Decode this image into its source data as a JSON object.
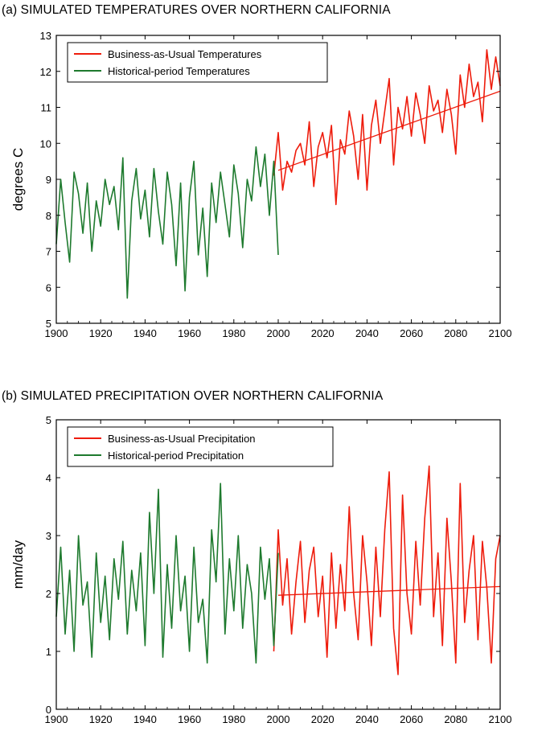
{
  "colors": {
    "business_as_usual": "#ee1c0c",
    "historical": "#1e7a2e",
    "trend": "#ee1c0c"
  },
  "chart_data": [
    {
      "type": "line",
      "title": "(a) SIMULATED TEMPERATURES OVER NORTHERN CALIFORNIA",
      "xlabel": "",
      "ylabel": "degrees C",
      "xlim": [
        1900,
        2100
      ],
      "ylim": [
        5,
        13
      ],
      "xticks": [
        1900,
        1920,
        1940,
        1960,
        1980,
        2000,
        2020,
        2040,
        2060,
        2080,
        2100
      ],
      "yticks": [
        5,
        6,
        7,
        8,
        9,
        10,
        11,
        12,
        13
      ],
      "grid": false,
      "legend_position": "top-left",
      "series": [
        {
          "name": "Business-as-Usual Temperatures",
          "color": "#ee1c0c",
          "x": [
            1998,
            2000,
            2002,
            2004,
            2006,
            2008,
            2010,
            2012,
            2014,
            2016,
            2018,
            2020,
            2022,
            2024,
            2026,
            2028,
            2030,
            2032,
            2034,
            2036,
            2038,
            2040,
            2042,
            2044,
            2046,
            2048,
            2050,
            2052,
            2054,
            2056,
            2058,
            2060,
            2062,
            2064,
            2066,
            2068,
            2070,
            2072,
            2074,
            2076,
            2078,
            2080,
            2082,
            2084,
            2086,
            2088,
            2090,
            2092,
            2094,
            2096,
            2098,
            2100
          ],
          "y": [
            9.1,
            10.3,
            8.7,
            9.5,
            9.2,
            9.8,
            10.0,
            9.4,
            10.6,
            8.8,
            9.9,
            10.3,
            9.6,
            10.5,
            8.3,
            10.1,
            9.7,
            10.9,
            10.2,
            9.0,
            10.8,
            8.7,
            10.5,
            11.2,
            10.0,
            10.9,
            11.8,
            9.4,
            11.0,
            10.4,
            11.3,
            10.2,
            11.4,
            10.8,
            10.0,
            11.6,
            10.9,
            11.2,
            10.3,
            11.5,
            10.8,
            9.7,
            11.9,
            11.0,
            12.2,
            11.3,
            11.7,
            10.6,
            12.6,
            11.5,
            12.4,
            11.6
          ]
        },
        {
          "name": "Historical-period Temperatures",
          "color": "#1e7a2e",
          "x": [
            1900,
            1902,
            1904,
            1906,
            1908,
            1910,
            1912,
            1914,
            1916,
            1918,
            1920,
            1922,
            1924,
            1926,
            1928,
            1930,
            1932,
            1934,
            1936,
            1938,
            1940,
            1942,
            1944,
            1946,
            1948,
            1950,
            1952,
            1954,
            1956,
            1958,
            1960,
            1962,
            1964,
            1966,
            1968,
            1970,
            1972,
            1974,
            1976,
            1978,
            1980,
            1982,
            1984,
            1986,
            1988,
            1990,
            1992,
            1994,
            1996,
            1998,
            2000
          ],
          "y": [
            7.2,
            9.0,
            7.8,
            6.7,
            9.2,
            8.6,
            7.5,
            8.9,
            7.0,
            8.4,
            7.7,
            9.0,
            8.3,
            8.8,
            7.6,
            9.6,
            5.7,
            8.4,
            9.3,
            7.9,
            8.7,
            7.4,
            9.3,
            8.1,
            7.2,
            9.2,
            8.3,
            6.6,
            8.9,
            5.9,
            8.5,
            9.5,
            6.9,
            8.2,
            6.3,
            8.9,
            7.8,
            9.2,
            8.3,
            7.4,
            9.4,
            8.6,
            7.1,
            9.0,
            8.4,
            9.9,
            8.8,
            9.7,
            8.0,
            9.5,
            6.9
          ]
        },
        {
          "name": "",
          "color": "#ee1c0c",
          "x": [
            2000,
            2100
          ],
          "y": [
            9.25,
            11.45
          ]
        }
      ]
    },
    {
      "type": "line",
      "title": "(b) SIMULATED PRECIPITATION OVER NORTHERN CALIFORNIA",
      "xlabel": "",
      "ylabel": "mm/day",
      "xlim": [
        1900,
        2100
      ],
      "ylim": [
        0,
        5
      ],
      "xticks": [
        1900,
        1920,
        1940,
        1960,
        1980,
        2000,
        2020,
        2040,
        2060,
        2080,
        2100
      ],
      "yticks": [
        0,
        1,
        2,
        3,
        4,
        5
      ],
      "grid": false,
      "legend_position": "top-left",
      "series": [
        {
          "name": "Business-as-Usual Precipitation",
          "color": "#ee1c0c",
          "x": [
            1998,
            2000,
            2002,
            2004,
            2006,
            2008,
            2010,
            2012,
            2014,
            2016,
            2018,
            2020,
            2022,
            2024,
            2026,
            2028,
            2030,
            2032,
            2034,
            2036,
            2038,
            2040,
            2042,
            2044,
            2046,
            2048,
            2050,
            2052,
            2054,
            2056,
            2058,
            2060,
            2062,
            2064,
            2066,
            2068,
            2070,
            2072,
            2074,
            2076,
            2078,
            2080,
            2082,
            2084,
            2086,
            2088,
            2090,
            2092,
            2094,
            2096,
            2098,
            2100
          ],
          "y": [
            1.0,
            3.1,
            1.8,
            2.6,
            1.3,
            2.2,
            2.9,
            1.5,
            2.4,
            2.8,
            1.6,
            2.3,
            0.9,
            2.7,
            1.4,
            2.5,
            1.7,
            3.5,
            2.0,
            1.2,
            3.0,
            2.2,
            1.1,
            2.8,
            1.6,
            3.1,
            4.1,
            1.4,
            0.6,
            3.7,
            2.0,
            1.3,
            2.9,
            1.8,
            3.3,
            4.2,
            1.6,
            2.7,
            1.1,
            3.3,
            2.2,
            0.8,
            3.9,
            1.5,
            2.4,
            3.0,
            1.2,
            2.9,
            2.1,
            0.8,
            2.6,
            3.0
          ]
        },
        {
          "name": "Historical-period Precipitation",
          "color": "#1e7a2e",
          "x": [
            1900,
            1902,
            1904,
            1906,
            1908,
            1910,
            1912,
            1914,
            1916,
            1918,
            1920,
            1922,
            1924,
            1926,
            1928,
            1930,
            1932,
            1934,
            1936,
            1938,
            1940,
            1942,
            1944,
            1946,
            1948,
            1950,
            1952,
            1954,
            1956,
            1958,
            1960,
            1962,
            1964,
            1966,
            1968,
            1970,
            1972,
            1974,
            1976,
            1978,
            1980,
            1982,
            1984,
            1986,
            1988,
            1990,
            1992,
            1994,
            1996,
            1998,
            2000
          ],
          "y": [
            1.6,
            2.8,
            1.3,
            2.4,
            1.0,
            3.0,
            1.8,
            2.2,
            0.9,
            2.7,
            1.5,
            2.3,
            1.2,
            2.6,
            1.9,
            2.9,
            1.3,
            2.4,
            1.7,
            2.7,
            1.1,
            3.4,
            2.0,
            3.8,
            0.9,
            2.5,
            1.4,
            3.0,
            1.7,
            2.3,
            1.0,
            2.8,
            1.5,
            1.9,
            0.8,
            3.1,
            2.2,
            3.9,
            1.3,
            2.6,
            1.7,
            3.0,
            1.4,
            2.5,
            2.0,
            0.8,
            2.8,
            1.9,
            2.6,
            1.1,
            2.7
          ]
        },
        {
          "name": "",
          "color": "#ee1c0c",
          "x": [
            2000,
            2100
          ],
          "y": [
            1.97,
            2.12
          ]
        }
      ]
    }
  ]
}
